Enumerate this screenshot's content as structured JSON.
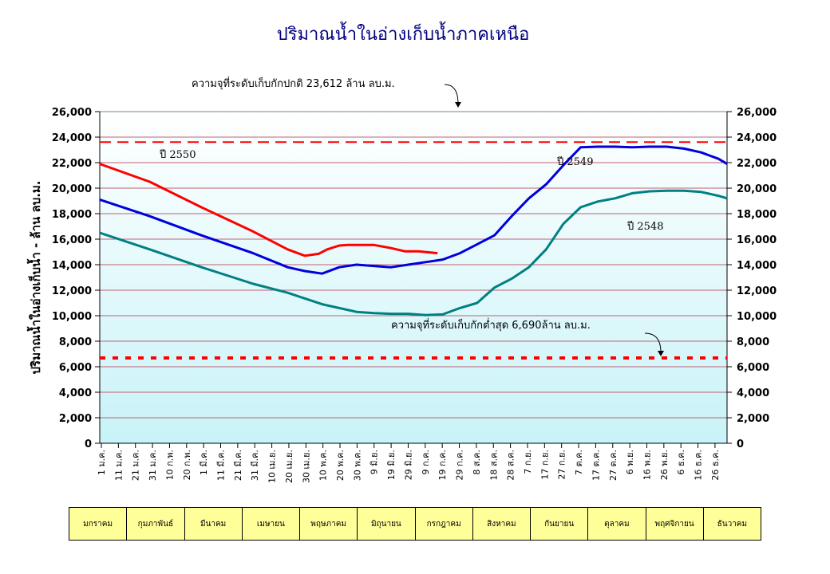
{
  "chart_data": {
    "type": "line",
    "title": "ปริมาณน้ำในอ่างเก็บน้ำภาคเหนือ",
    "ylabel": "ปริมาณน้ำในอ่างเก็บน้ำ - ล้าน ลบ.ม.",
    "ylim": [
      0,
      26000
    ],
    "yticks": [
      "0",
      "2,000",
      "4,000",
      "6,000",
      "8,000",
      "10,000",
      "12,000",
      "14,000",
      "16,000",
      "18,000",
      "20,000",
      "22,000",
      "24,000",
      "26,000"
    ],
    "x_labels": [
      "1 ม.ค.",
      "11 ม.ค.",
      "21 ม.ค.",
      "31 ม.ค.",
      "10 ก.พ.",
      "20 ก.พ.",
      "1 มี.ค.",
      "11 มี.ค.",
      "21 มี.ค.",
      "31 มี.ค.",
      "10 เม.ย.",
      "20 เม.ย.",
      "30 เม.ย.",
      "10 พ.ค.",
      "20 พ.ค.",
      "30 พ.ค.",
      "9 มิ.ย.",
      "19 มิ.ย.",
      "29 มิ.ย.",
      "9 ก.ค.",
      "19 ก.ค.",
      "29 ก.ค.",
      "8 ส.ค.",
      "18 ส.ค.",
      "28 ส.ค.",
      "7 ก.ย.",
      "17 ก.ย.",
      "27 ก.ย.",
      "7 ต.ค.",
      "17 ต.ค.",
      "27 ต.ค.",
      "6 พ.ย.",
      "16 พ.ย.",
      "26 พ.ย.",
      "6 ธ.ค.",
      "16 ธ.ค.",
      "26 ธ.ค."
    ],
    "x_day_range": [
      1,
      365
    ],
    "grid": true,
    "reference_lines": [
      {
        "label": "ความจุที่ระดับเก็บกักปกติ 23,612 ล้าน ลบ.ม.",
        "value": 23612,
        "color": "#ff0000",
        "style": "dashed"
      },
      {
        "label": "ความจุที่ระดับเก็บกักต่ำสุด 6,690ล้าน ลบ.ม.",
        "value": 6690,
        "color": "#ff0000",
        "style": "dotted"
      }
    ],
    "series": [
      {
        "name": "ปี 2550",
        "color": "#ff0000",
        "x": [
          1,
          30,
          60,
          90,
          110,
          120,
          128,
          133,
          140,
          145,
          160,
          170,
          178,
          186,
          197
        ],
        "y": [
          21900,
          20500,
          18500,
          16600,
          15200,
          14700,
          14850,
          15200,
          15500,
          15550,
          15550,
          15300,
          15050,
          15050,
          14900
        ]
      },
      {
        "name": "ปี 2549",
        "color": "#0000dd",
        "x": [
          1,
          30,
          60,
          90,
          110,
          120,
          130,
          140,
          150,
          160,
          170,
          180,
          190,
          200,
          210,
          220,
          230,
          240,
          250,
          260,
          270,
          280,
          290,
          300,
          310,
          320,
          330,
          340,
          350,
          360,
          365
        ],
        "y": [
          19100,
          17800,
          16300,
          14900,
          13800,
          13500,
          13300,
          13800,
          14000,
          13900,
          13800,
          14000,
          14200,
          14400,
          14900,
          15600,
          16300,
          17800,
          19200,
          20300,
          21800,
          23200,
          23250,
          23250,
          23200,
          23250,
          23250,
          23100,
          22800,
          22300,
          21900
        ]
      },
      {
        "name": "ปี 2548",
        "color": "#008080",
        "x": [
          1,
          30,
          60,
          90,
          110,
          130,
          150,
          160,
          170,
          180,
          190,
          200,
          210,
          220,
          230,
          240,
          250,
          260,
          270,
          280,
          290,
          300,
          310,
          320,
          330,
          340,
          350,
          360,
          365
        ],
        "y": [
          16500,
          15200,
          13800,
          12500,
          11800,
          10900,
          10300,
          10200,
          10150,
          10150,
          10050,
          10100,
          10600,
          11000,
          12200,
          12900,
          13800,
          15200,
          17200,
          18500,
          18950,
          19200,
          19600,
          19750,
          19800,
          19800,
          19700,
          19400,
          19200
        ]
      }
    ]
  },
  "page": {
    "title": "ปริมาณน้ำในอ่างเก็บน้ำภาคเหนือ",
    "ylabel": "ปริมาณน้ำในอ่างเก็บน้ำ - ล้าน ลบ.ม."
  },
  "months": [
    "มกราคม",
    "กุมภาพันธ์",
    "มีนาคม",
    "เมษายน",
    "พฤษภาคม",
    "มิถุนายน",
    "กรกฎาคม",
    "สิงหาคม",
    "กันยายน",
    "ตุลาคม",
    "พฤศจิกายน",
    "ธันวาคม"
  ],
  "colors": {
    "plot_top": "#ffffff",
    "plot_bottom": "#ccf5f8",
    "grid": "#c06070",
    "month_bg": "#ffff99"
  }
}
